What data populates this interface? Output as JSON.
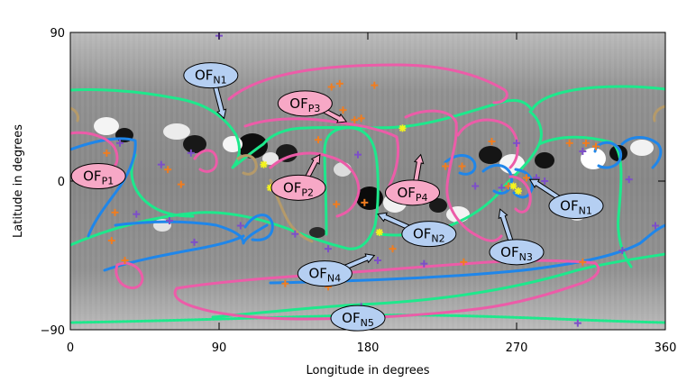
{
  "chart_data": {
    "type": "map",
    "xlabel": "Longitude in degrees",
    "ylabel": "Latitude in degrees",
    "xlim": [
      0,
      360
    ],
    "ylim": [
      -90,
      90
    ],
    "xticks": [
      0,
      90,
      180,
      270,
      360
    ],
    "yticks": [
      -90,
      0,
      90
    ],
    "xtick_labels": [
      "0",
      "90",
      "180",
      "270",
      "360"
    ],
    "ytick_labels": [
      "−90",
      "0",
      "90"
    ],
    "grid": false,
    "colors": {
      "boundary_green": "#1ee88c",
      "boundary_blue": "#1f86ea",
      "boundary_pink": "#ec5ca8",
      "boundary_tan": "#b59a6a",
      "marker_orange": "#f07d20",
      "marker_purple": "#7d4fc8",
      "marker_yellow": "#f4f41c",
      "label_pink_fill": "#f7a8c6",
      "label_blue_fill": "#b5cff2"
    },
    "labels": [
      {
        "id": "ofn1_a",
        "text": "OF",
        "sub": "N1",
        "fill": "blue",
        "lon": 85,
        "lat": 64,
        "tip_lon": 93,
        "tip_lat": 38
      },
      {
        "id": "ofp3",
        "text": "OF",
        "sub": "P3",
        "fill": "pink",
        "lon": 142,
        "lat": 47,
        "tip_lon": 167,
        "tip_lat": 36
      },
      {
        "id": "ofp1",
        "text": "OF",
        "sub": "P1",
        "fill": "pink",
        "lon": 17,
        "lat": 3,
        "tip_lon": null,
        "tip_lat": null
      },
      {
        "id": "ofp2",
        "text": "OF",
        "sub": "P2",
        "fill": "pink",
        "lon": 138,
        "lat": -4,
        "tip_lon": 151,
        "tip_lat": 16
      },
      {
        "id": "ofp4",
        "text": "OF",
        "sub": "P4",
        "fill": "pink",
        "lon": 207,
        "lat": -7,
        "tip_lon": 212,
        "tip_lat": 16
      },
      {
        "id": "ofn1_b",
        "text": "OF",
        "sub": "N1",
        "fill": "blue",
        "lon": 306,
        "lat": -15,
        "tip_lon": 278,
        "tip_lat": 1
      },
      {
        "id": "ofn2",
        "text": "OF",
        "sub": "N2",
        "fill": "blue",
        "lon": 217,
        "lat": -32,
        "tip_lon": 186,
        "tip_lat": -20
      },
      {
        "id": "ofn3",
        "text": "OF",
        "sub": "N3",
        "fill": "blue",
        "lon": 270,
        "lat": -43,
        "tip_lon": 260,
        "tip_lat": -17
      },
      {
        "id": "ofn4",
        "text": "OF",
        "sub": "N4",
        "fill": "blue",
        "lon": 154,
        "lat": -56,
        "tip_lon": 184,
        "tip_lat": -45
      },
      {
        "id": "ofn5",
        "text": "OF",
        "sub": "N5",
        "fill": "blue",
        "lon": 174,
        "lat": -83,
        "tip_lon": null,
        "tip_lat": null
      }
    ]
  }
}
